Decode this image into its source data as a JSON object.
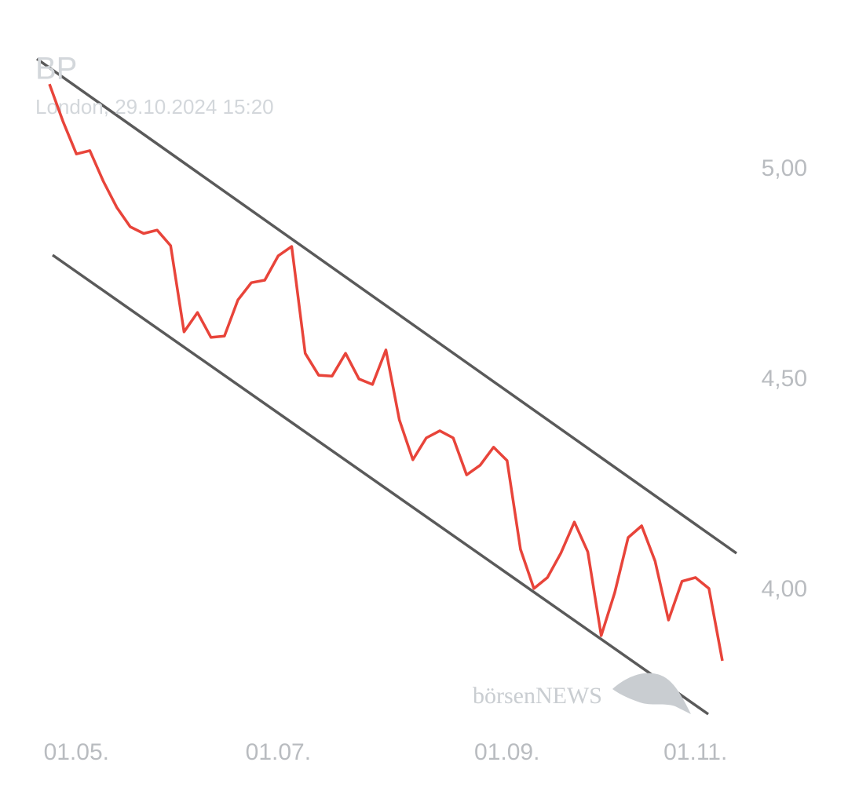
{
  "chart_data": {
    "type": "line",
    "title": "BP",
    "subtitle": "London, 29.10.2024 15:20",
    "watermark": "börsenNEWS",
    "color": "#e8443a",
    "grid": false,
    "categories": [
      null,
      null,
      "01.05.",
      null,
      null,
      null,
      null,
      null,
      null,
      null,
      null,
      null,
      null,
      null,
      null,
      null,
      null,
      "01.07.",
      null,
      null,
      null,
      null,
      null,
      null,
      null,
      null,
      null,
      null,
      null,
      null,
      null,
      null,
      null,
      null,
      "01.09.",
      null,
      null,
      null,
      null,
      null,
      null,
      null,
      null,
      null,
      null,
      null,
      null,
      null,
      "01.11.",
      null,
      null
    ],
    "values": [
      5.203,
      5.115,
      5.037,
      5.045,
      4.972,
      4.91,
      4.864,
      4.848,
      4.856,
      4.819,
      4.614,
      4.66,
      4.601,
      4.604,
      4.69,
      4.731,
      4.737,
      4.795,
      4.817,
      4.563,
      4.511,
      4.509,
      4.563,
      4.502,
      4.489,
      4.571,
      4.405,
      4.31,
      4.362,
      4.379,
      4.362,
      4.274,
      4.297,
      4.34,
      4.308,
      4.097,
      4.004,
      4.03,
      4.088,
      4.162,
      4.091,
      3.892,
      3.994,
      4.125,
      4.153,
      4.069,
      3.929,
      4.021,
      4.03,
      4.004,
      3.832
    ],
    "ylim": [
      3.7,
      5.3
    ],
    "yticks": [
      {
        "value": 4,
        "label": "4,00"
      },
      {
        "value": 4.5,
        "label": "4,50"
      },
      {
        "value": 5,
        "label": "5,00"
      }
    ]
  }
}
